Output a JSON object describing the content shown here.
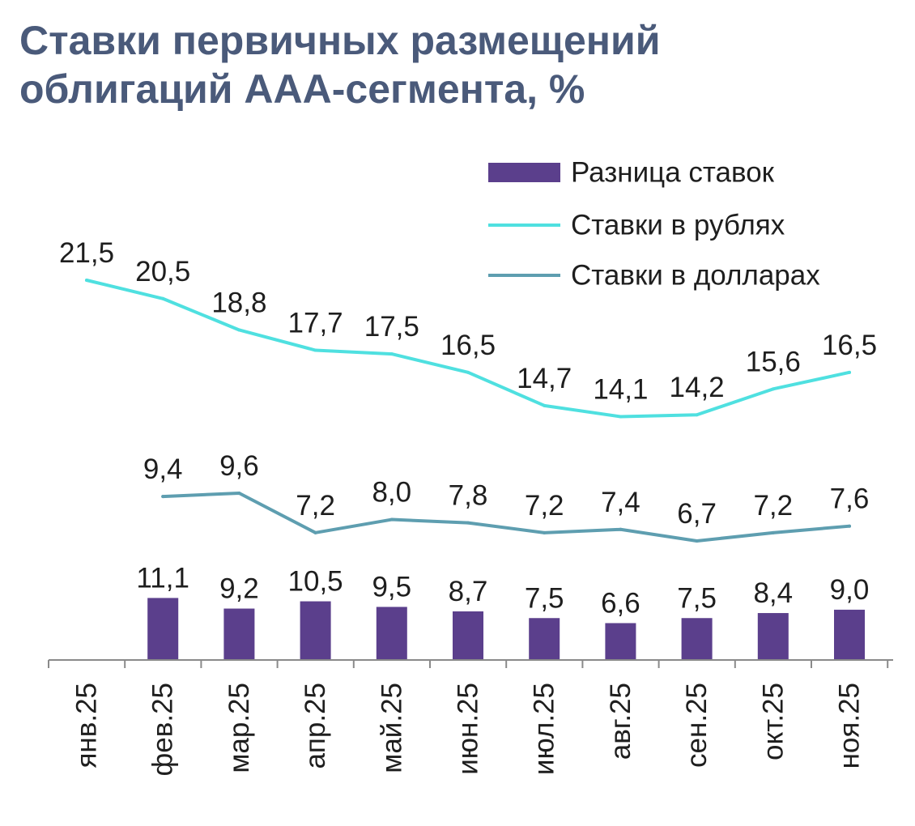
{
  "title_lines": [
    "Ставки первичных размещений",
    "облигаций ААА-сегмента, %"
  ],
  "chart_data": {
    "type": "bar+line",
    "categories": [
      "янв.25",
      "фев.25",
      "мар.25",
      "апр.25",
      "май.25",
      "июн.25",
      "июл.25",
      "авг.25",
      "сен.25",
      "окт.25",
      "ноя.25"
    ],
    "series": [
      {
        "name": "Разница ставок",
        "type": "bar",
        "color": "#5b3f8c",
        "values": [
          null,
          11.1,
          9.2,
          10.5,
          9.5,
          8.7,
          7.5,
          6.6,
          7.5,
          8.4,
          9.0
        ],
        "labels": [
          "",
          "11,1",
          "9,2",
          "10,5",
          "9,5",
          "8,7",
          "7,5",
          "6,6",
          "7,5",
          "8,4",
          "9,0"
        ]
      },
      {
        "name": "Ставки в рублях",
        "type": "line",
        "color": "#4fe0e0",
        "values": [
          21.5,
          20.5,
          18.8,
          17.7,
          17.5,
          16.5,
          14.7,
          14.1,
          14.2,
          15.6,
          16.5
        ],
        "labels": [
          "21,5",
          "20,5",
          "18,8",
          "17,7",
          "17,5",
          "16,5",
          "14,7",
          "14,1",
          "14,2",
          "15,6",
          "16,5"
        ]
      },
      {
        "name": "Ставки в долларах",
        "type": "line",
        "color": "#5e9eb0",
        "values": [
          null,
          9.4,
          9.6,
          7.2,
          8.0,
          7.8,
          7.2,
          7.4,
          6.7,
          7.2,
          7.6
        ],
        "labels": [
          "",
          "9,4",
          "9,6",
          "7,2",
          "8,0",
          "7,8",
          "7,2",
          "7,4",
          "6,7",
          "7,2",
          "7,6"
        ]
      }
    ],
    "legend_position": "top-right",
    "grid": false
  }
}
